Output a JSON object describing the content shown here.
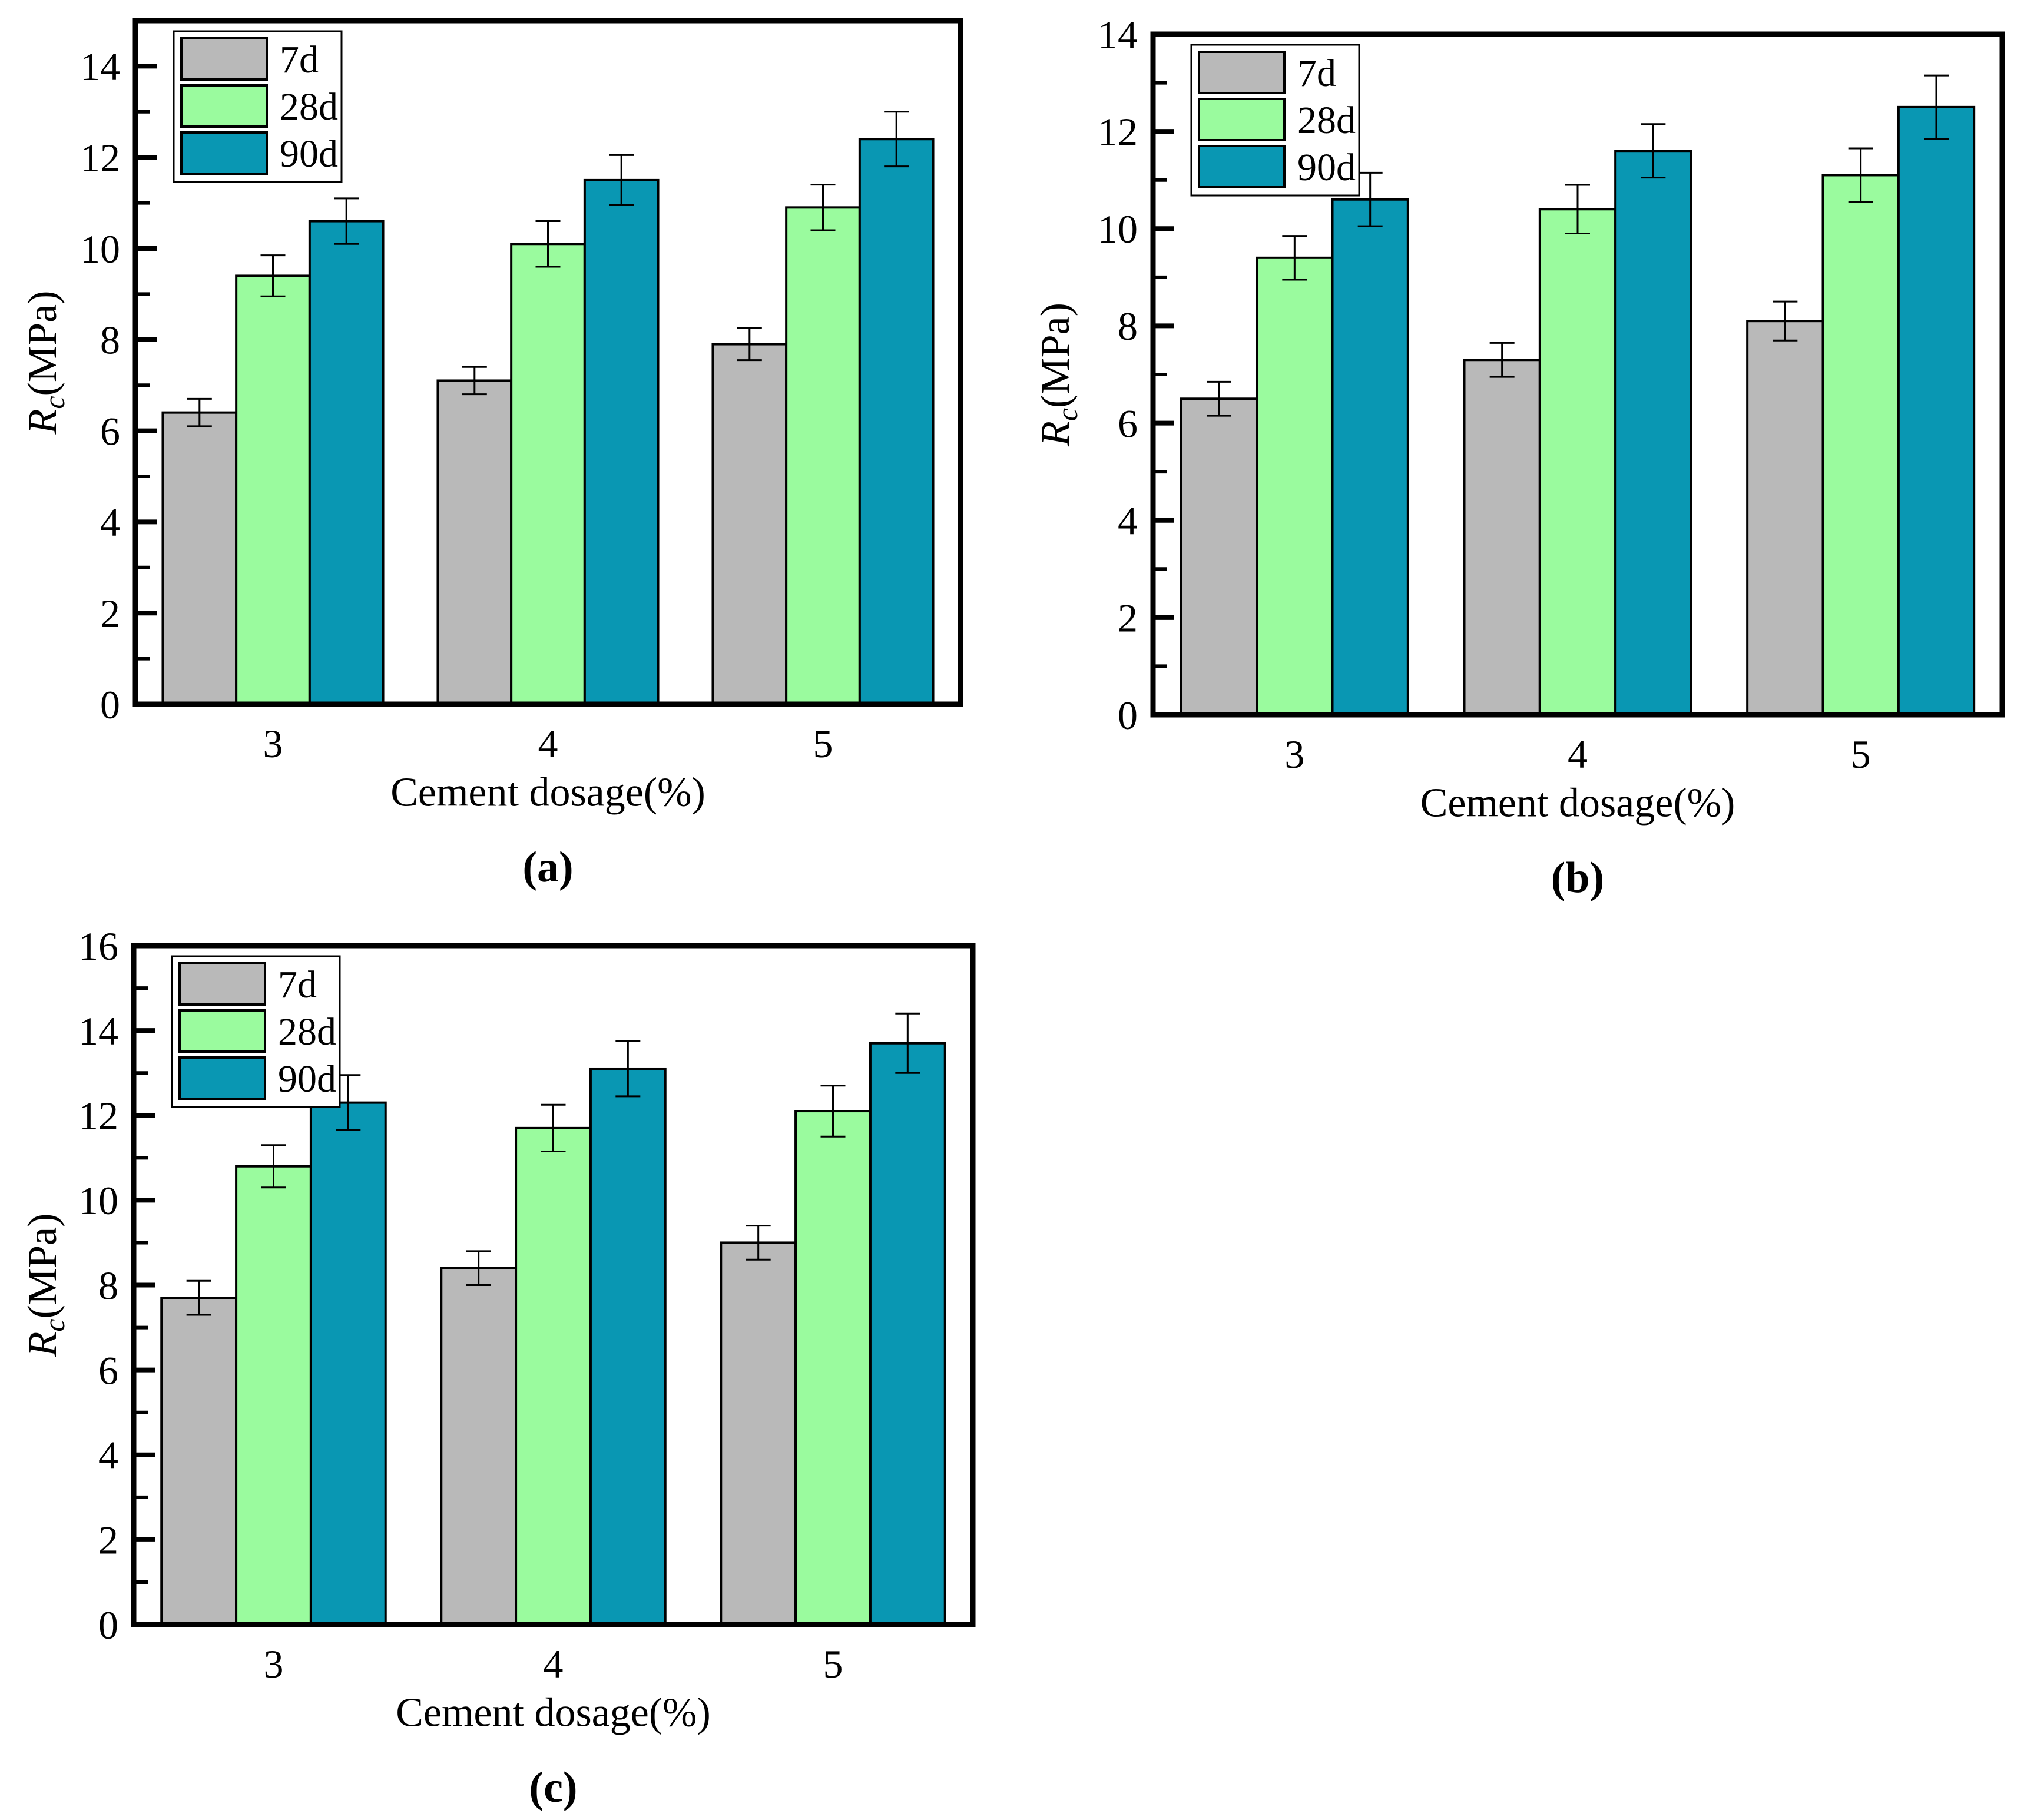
{
  "figure": {
    "background": "#ffffff",
    "axis_color": "#000000",
    "series_colors": {
      "7d": "#b9b9b9",
      "28d": "#9afb9e",
      "90d": "#0997b3"
    }
  },
  "chart_data": [
    {
      "id": "a",
      "type": "bar",
      "panel_label": "(a)",
      "xlabel": "Cement dosage(%)",
      "ylabel": "Rc(MPa)",
      "ylabel_symbol": "R",
      "ylabel_subscript": "c",
      "ylabel_unit": "(MPa)",
      "categories": [
        "3",
        "4",
        "5"
      ],
      "ylim": [
        0,
        15
      ],
      "yticks": [
        0,
        2,
        4,
        6,
        8,
        10,
        12,
        14
      ],
      "grid": "off",
      "legend_position": "top-left",
      "legend": [
        "7d",
        "28d",
        "90d"
      ],
      "series": [
        {
          "name": "7d",
          "color": "#b9b9b9",
          "values": [
            6.4,
            7.1,
            7.9
          ],
          "errors": [
            0.3,
            0.3,
            0.35
          ]
        },
        {
          "name": "28d",
          "color": "#9afb9e",
          "values": [
            9.4,
            10.1,
            10.9
          ],
          "errors": [
            0.45,
            0.5,
            0.5
          ]
        },
        {
          "name": "90d",
          "color": "#0997b3",
          "values": [
            10.6,
            11.5,
            12.4
          ],
          "errors": [
            0.5,
            0.55,
            0.6
          ]
        }
      ]
    },
    {
      "id": "b",
      "type": "bar",
      "panel_label": "(b)",
      "xlabel": "Cement dosage(%)",
      "ylabel": "Rc(MPa)",
      "ylabel_symbol": "R",
      "ylabel_subscript": "c",
      "ylabel_unit": "(MPa)",
      "categories": [
        "3",
        "4",
        "5"
      ],
      "ylim": [
        0,
        14
      ],
      "yticks": [
        0,
        2,
        4,
        6,
        8,
        10,
        12,
        14
      ],
      "grid": "off",
      "legend_position": "top-left",
      "legend": [
        "7d",
        "28d",
        "90d"
      ],
      "series": [
        {
          "name": "7d",
          "color": "#b9b9b9",
          "values": [
            6.5,
            7.3,
            8.1
          ],
          "errors": [
            0.35,
            0.35,
            0.4
          ]
        },
        {
          "name": "28d",
          "color": "#9afb9e",
          "values": [
            9.4,
            10.4,
            11.1
          ],
          "errors": [
            0.45,
            0.5,
            0.55
          ]
        },
        {
          "name": "90d",
          "color": "#0997b3",
          "values": [
            10.6,
            11.6,
            12.5
          ],
          "errors": [
            0.55,
            0.55,
            0.65
          ]
        }
      ]
    },
    {
      "id": "c",
      "type": "bar",
      "panel_label": "(c)",
      "xlabel": "Cement dosage(%)",
      "ylabel": "Rc(MPa)",
      "ylabel_symbol": "R",
      "ylabel_subscript": "c",
      "ylabel_unit": "(MPa)",
      "categories": [
        "3",
        "4",
        "5"
      ],
      "ylim": [
        0,
        16
      ],
      "yticks": [
        0,
        2,
        4,
        6,
        8,
        10,
        12,
        14,
        16
      ],
      "grid": "off",
      "legend_position": "top-left",
      "legend": [
        "7d",
        "28d",
        "90d"
      ],
      "series": [
        {
          "name": "7d",
          "color": "#b9b9b9",
          "values": [
            7.7,
            8.4,
            9.0
          ],
          "errors": [
            0.4,
            0.4,
            0.4
          ]
        },
        {
          "name": "28d",
          "color": "#9afb9e",
          "values": [
            10.8,
            11.7,
            12.1
          ],
          "errors": [
            0.5,
            0.55,
            0.6
          ]
        },
        {
          "name": "90d",
          "color": "#0997b3",
          "values": [
            12.3,
            13.1,
            13.7
          ],
          "errors": [
            0.65,
            0.65,
            0.7
          ]
        }
      ]
    }
  ]
}
